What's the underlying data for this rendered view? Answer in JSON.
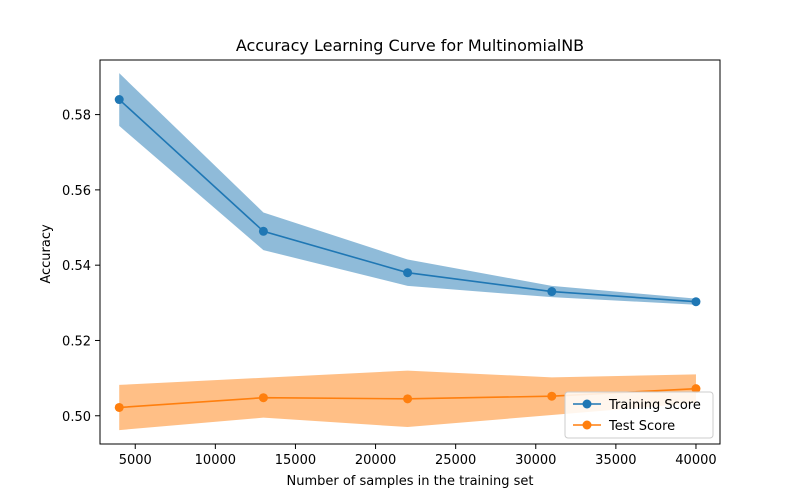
{
  "chart_data": {
    "type": "line",
    "title": "Accuracy Learning Curve for MultinomialNB",
    "xlabel": "Number of samples in the training set",
    "ylabel": "Accuracy",
    "xlim": [
      2800,
      41500
    ],
    "ylim": [
      0.4925,
      0.5945
    ],
    "xticks": [
      5000,
      10000,
      15000,
      20000,
      25000,
      30000,
      35000,
      40000
    ],
    "yticks": [
      0.5,
      0.52,
      0.54,
      0.56,
      0.58
    ],
    "xtick_labels": [
      "5000",
      "10000",
      "15000",
      "20000",
      "25000",
      "30000",
      "35000",
      "40000"
    ],
    "ytick_labels": [
      "0.50",
      "0.52",
      "0.54",
      "0.56",
      "0.58"
    ],
    "grid": false,
    "legend_position": "lower-right",
    "x": [
      4000,
      13000,
      22000,
      31000,
      40000
    ],
    "series": [
      {
        "name": "Training Score",
        "color": "#1f77b4",
        "band_color": "#1f77b4",
        "marker": "circle",
        "values": [
          0.584,
          0.549,
          0.538,
          0.533,
          0.5303
        ],
        "lower": [
          0.577,
          0.544,
          0.5345,
          0.5315,
          0.5295
        ],
        "upper": [
          0.591,
          0.554,
          0.5415,
          0.5345,
          0.5311
        ]
      },
      {
        "name": "Test Score",
        "color": "#ff7f0e",
        "band_color": "#ff7f0e",
        "marker": "circle",
        "values": [
          0.5022,
          0.5048,
          0.5045,
          0.5052,
          0.5072
        ],
        "lower": [
          0.4962,
          0.4995,
          0.497,
          0.5002,
          0.5034
        ],
        "upper": [
          0.5082,
          0.5101,
          0.512,
          0.5102,
          0.511
        ]
      }
    ]
  }
}
